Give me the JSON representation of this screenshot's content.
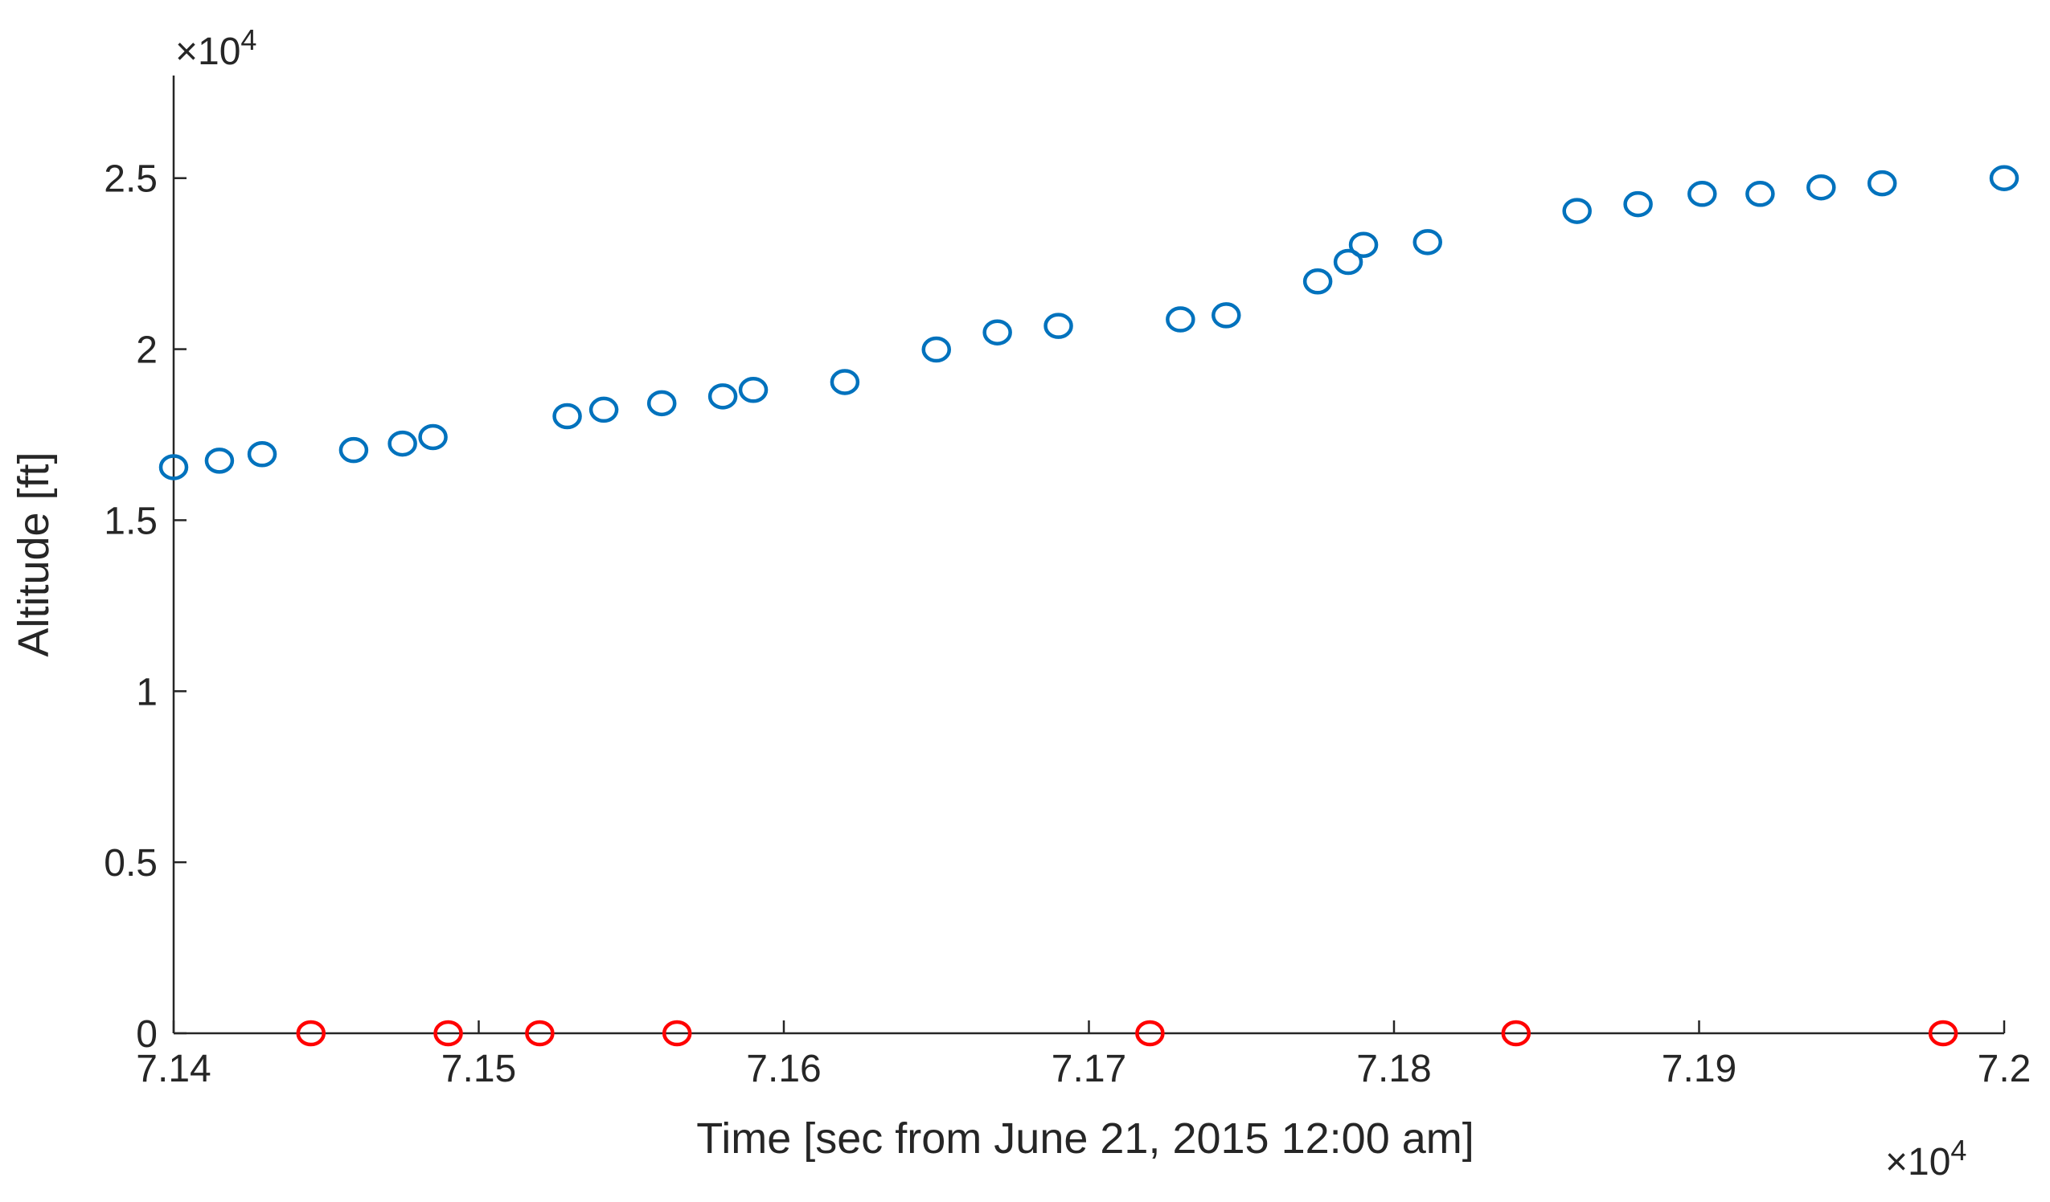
{
  "chart_data": {
    "type": "scatter",
    "x_label": "Time [sec from June 21, 2015 12:00 am]",
    "y_label": "Altitude [ft]",
    "x_multiplier": {
      "base": "×10",
      "exponent": "4"
    },
    "y_multiplier": {
      "base": "×10",
      "exponent": "4"
    },
    "xlim": [
      7.14,
      7.2
    ],
    "ylim": [
      0,
      2.8
    ],
    "xticks": [
      7.14,
      7.15,
      7.16,
      7.17,
      7.18,
      7.19,
      7.2
    ],
    "yticks": [
      0,
      0.5,
      1,
      1.5,
      2,
      2.5
    ],
    "grid": false,
    "series": [
      {
        "color": "#0072bd",
        "x": [
          7.14,
          7.1415,
          7.1429,
          7.1459,
          7.1475,
          7.1485,
          7.1529,
          7.1541,
          7.156,
          7.158,
          7.159,
          7.162,
          7.165,
          7.167,
          7.169,
          7.173,
          7.1745,
          7.1775,
          7.1785,
          7.179,
          7.1811,
          7.186,
          7.188,
          7.1901,
          7.192,
          7.194,
          7.196,
          7.2
        ],
        "values": [
          1.655,
          1.674,
          1.693,
          1.705,
          1.724,
          1.743,
          1.804,
          1.823,
          1.842,
          1.862,
          1.881,
          1.904,
          1.999,
          2.049,
          2.068,
          2.087,
          2.099,
          2.198,
          2.255,
          2.305,
          2.313,
          2.404,
          2.424,
          2.454,
          2.454,
          2.473,
          2.485,
          2.5
        ]
      },
      {
        "color": "#ff0000",
        "x": [
          7.1445,
          7.149,
          7.152,
          7.1565,
          7.172,
          7.184,
          7.198
        ],
        "values": [
          0,
          0,
          0,
          0,
          0,
          0,
          0
        ]
      }
    ]
  }
}
